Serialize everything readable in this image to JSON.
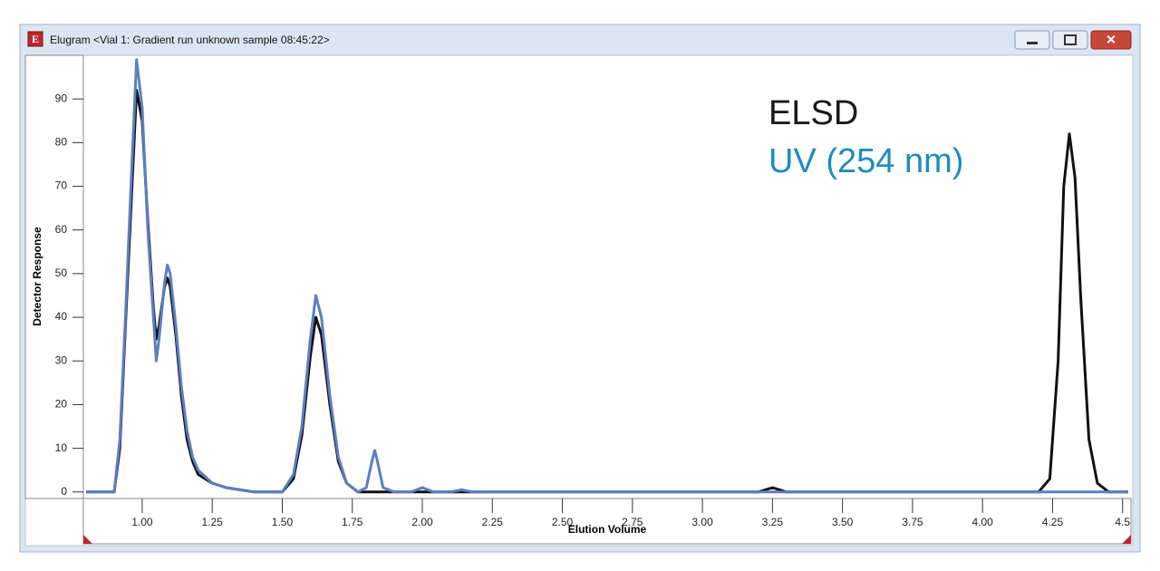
{
  "window": {
    "title": "Elugram <Vial   1: Gradient run unknown sample  08:45:22>"
  },
  "chart_data": {
    "type": "line",
    "x_label": "Elution Volume",
    "y_label": "Detector Response",
    "xlim": [
      0.79,
      4.53
    ],
    "ylim": [
      -1.5,
      100
    ],
    "xticks": [
      {
        "value": 1,
        "label": "1.00"
      },
      1.25,
      {
        "value": 1.5,
        "label": "1.50"
      },
      1.75,
      {
        "value": 2,
        "label": "2.00"
      },
      2.25,
      {
        "value": 2.5,
        "label": "2.50"
      },
      2.75,
      {
        "value": 3,
        "label": "3.00"
      },
      3.25,
      {
        "value": 3.5,
        "label": "3.50"
      },
      3.75,
      {
        "value": 4,
        "label": "4.00"
      },
      4.25,
      4.5
    ],
    "yticks": [
      0,
      10,
      20,
      30,
      40,
      50,
      60,
      70,
      80,
      90
    ],
    "series": [
      {
        "name": "ELSD",
        "color": "#111111",
        "label_color": "#1a1a1a",
        "x": [
          0.8,
          0.9,
          0.92,
          0.94,
          0.96,
          0.98,
          1.0,
          1.02,
          1.04,
          1.05,
          1.06,
          1.08,
          1.09,
          1.1,
          1.12,
          1.14,
          1.16,
          1.18,
          1.2,
          1.25,
          1.3,
          1.4,
          1.5,
          1.54,
          1.57,
          1.6,
          1.62,
          1.64,
          1.67,
          1.7,
          1.73,
          1.77,
          1.85,
          3.2,
          3.25,
          3.3,
          4.2,
          4.24,
          4.27,
          4.29,
          4.31,
          4.33,
          4.35,
          4.38,
          4.41,
          4.45,
          4.52
        ],
        "values": [
          0,
          0,
          10,
          38,
          65,
          92,
          85,
          62,
          42,
          35,
          38,
          47,
          49,
          47,
          36,
          22,
          12,
          7,
          4,
          2,
          1,
          0,
          0,
          3,
          13,
          31,
          40,
          36,
          20,
          7,
          2,
          0,
          0,
          0,
          1,
          0,
          0,
          3,
          30,
          70,
          82,
          72,
          45,
          12,
          2,
          0,
          0
        ]
      },
      {
        "name": "UV (254 nm)",
        "color": "#5b7fc0",
        "label_color": "#1f8dbb",
        "x": [
          0.8,
          0.88,
          0.9,
          0.92,
          0.94,
          0.96,
          0.98,
          1.0,
          1.02,
          1.04,
          1.05,
          1.06,
          1.08,
          1.09,
          1.1,
          1.12,
          1.14,
          1.16,
          1.18,
          1.2,
          1.25,
          1.3,
          1.4,
          1.5,
          1.54,
          1.57,
          1.6,
          1.62,
          1.64,
          1.67,
          1.7,
          1.73,
          1.77,
          1.8,
          1.82,
          1.83,
          1.84,
          1.86,
          1.9,
          1.96,
          2.0,
          2.04,
          2.1,
          2.14,
          2.18,
          2.3,
          4.52
        ],
        "values": [
          0,
          0,
          0,
          12,
          40,
          70,
          99,
          88,
          60,
          40,
          30,
          35,
          48,
          52,
          50,
          38,
          24,
          14,
          8,
          5,
          2,
          1,
          0,
          0,
          4,
          15,
          35,
          45,
          40,
          22,
          8,
          2,
          0,
          1,
          7,
          9.5,
          7,
          1,
          0,
          0,
          1,
          0,
          0,
          0.5,
          0,
          0,
          0
        ]
      }
    ]
  }
}
